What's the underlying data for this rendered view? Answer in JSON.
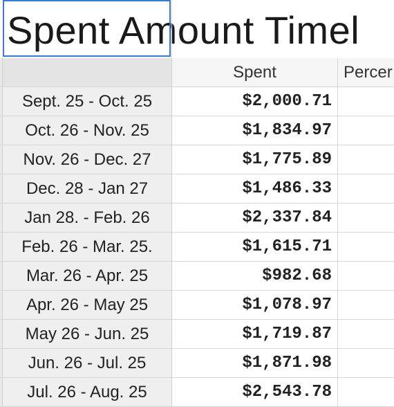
{
  "title": "Spent Amount Timel",
  "columns": {
    "spent": "Spent",
    "percent": "Percer"
  },
  "rows": [
    {
      "period": "Sept. 25 - Oct. 25",
      "spent": "$2,000.71"
    },
    {
      "period": "Oct. 26 - Nov. 25",
      "spent": "$1,834.97"
    },
    {
      "period": "Nov. 26 - Dec. 27",
      "spent": "$1,775.89"
    },
    {
      "period": "Dec. 28 - Jan 27",
      "spent": "$1,486.33"
    },
    {
      "period": "Jan 28. - Feb. 26",
      "spent": "$2,337.84"
    },
    {
      "period": "Feb. 26 - Mar. 25.",
      "spent": "$1,615.71"
    },
    {
      "period": "Mar. 26 - Apr. 25",
      "spent": "$982.68"
    },
    {
      "period": "Apr. 26 - May 25",
      "spent": "$1,078.97"
    },
    {
      "period": "May 26 - Jun. 25",
      "spent": "$1,719.87"
    },
    {
      "period": "Jun. 26 - Jul. 25",
      "spent": "$1,871.98"
    },
    {
      "period": "Jul. 26 - Aug. 25",
      "spent": "$2,543.78"
    }
  ]
}
